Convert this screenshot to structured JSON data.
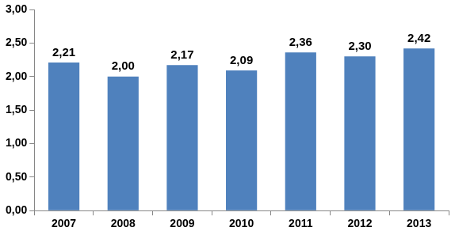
{
  "chart_data": {
    "type": "bar",
    "categories": [
      "2007",
      "2008",
      "2009",
      "2010",
      "2011",
      "2012",
      "2013"
    ],
    "values": [
      2.21,
      2.0,
      2.17,
      2.09,
      2.36,
      2.3,
      2.42
    ],
    "value_labels": [
      "2,21",
      "2,00",
      "2,17",
      "2,09",
      "2,36",
      "2,30",
      "2,42"
    ],
    "color": "#4f81bd",
    "ylim": [
      0,
      3
    ],
    "yticks": [
      {
        "value": 0,
        "label": "0,00"
      },
      {
        "value": 0.5,
        "label": "0,50"
      },
      {
        "value": 1,
        "label": "1,00"
      },
      {
        "value": 1.5,
        "label": "1,50"
      },
      {
        "value": 2,
        "label": "2,00"
      },
      {
        "value": 2.5,
        "label": "2,50"
      },
      {
        "value": 3,
        "label": "3,00"
      }
    ],
    "grid": false,
    "data_labels": true
  }
}
